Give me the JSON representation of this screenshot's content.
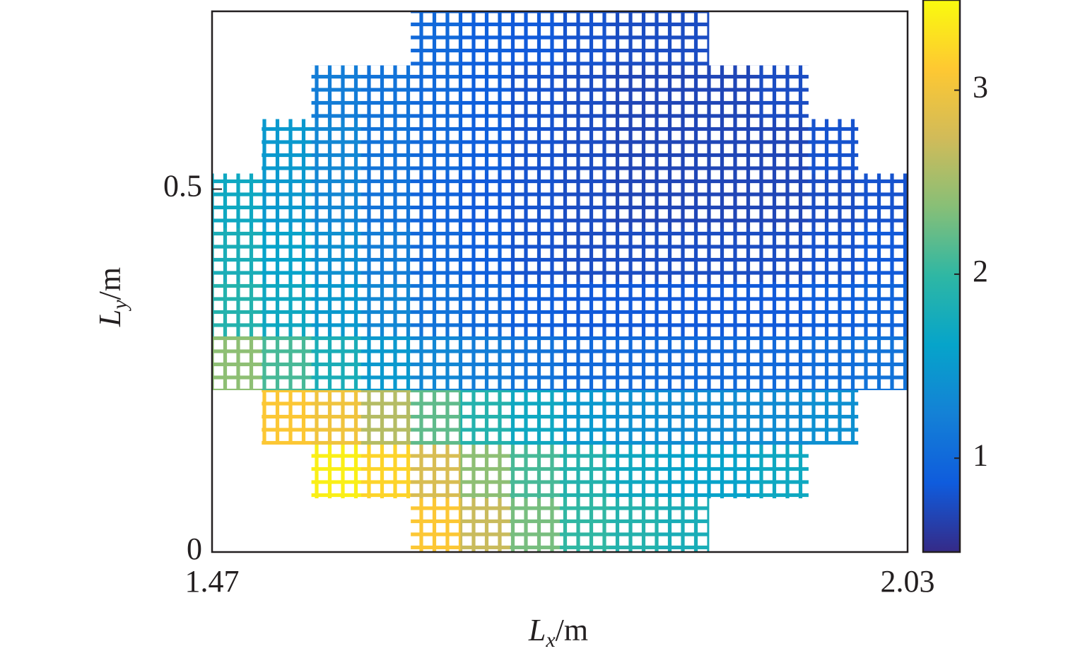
{
  "chart_data": {
    "type": "heatmap",
    "xlabel": {
      "symbol": "L",
      "subscript": "x",
      "unit": "/m"
    },
    "ylabel": {
      "symbol": "L",
      "subscript": "y",
      "unit": "/m"
    },
    "x": [
      1.49,
      1.53,
      1.57,
      1.61,
      1.65,
      1.69,
      1.73,
      1.77,
      1.81,
      1.85,
      1.89,
      1.93,
      1.97,
      2.01
    ],
    "y": [
      0.037,
      0.112,
      0.186,
      0.261,
      0.335,
      0.41,
      0.484,
      0.559,
      0.633,
      0.708
    ],
    "values": [
      [
        null,
        null,
        null,
        null,
        3.1,
        2.7,
        2.3,
        2.0,
        1.9,
        1.8,
        null,
        null,
        null,
        null
      ],
      [
        null,
        null,
        3.4,
        3.2,
        2.8,
        2.4,
        2.1,
        1.9,
        1.7,
        1.6,
        1.6,
        1.7,
        null,
        null
      ],
      [
        null,
        3.1,
        3.0,
        2.6,
        2.2,
        1.9,
        1.7,
        1.5,
        1.4,
        1.35,
        1.35,
        1.35,
        1.4,
        null
      ],
      [
        2.4,
        2.1,
        1.8,
        1.5,
        1.3,
        1.2,
        1.1,
        1.0,
        1.0,
        1.0,
        1.0,
        1.0,
        1.05,
        1.1
      ],
      [
        1.9,
        1.7,
        1.5,
        1.3,
        1.1,
        1.0,
        0.9,
        0.85,
        0.85,
        0.85,
        0.85,
        0.85,
        0.9,
        0.95
      ],
      [
        1.8,
        1.6,
        1.4,
        1.2,
        1.0,
        0.9,
        0.8,
        0.75,
        0.75,
        0.75,
        0.75,
        0.75,
        0.8,
        0.85
      ],
      [
        1.7,
        1.5,
        1.3,
        1.1,
        0.95,
        0.85,
        0.8,
        0.75,
        0.7,
        0.7,
        0.7,
        0.7,
        0.75,
        0.8
      ],
      [
        null,
        1.5,
        1.3,
        1.1,
        1.0,
        0.9,
        0.8,
        0.75,
        0.7,
        0.7,
        0.7,
        0.7,
        0.8,
        null
      ],
      [
        null,
        null,
        1.2,
        1.1,
        1.0,
        0.9,
        0.8,
        0.75,
        0.7,
        0.7,
        0.7,
        0.75,
        null,
        null
      ],
      [
        null,
        null,
        null,
        null,
        1.0,
        0.9,
        0.85,
        0.8,
        0.75,
        0.75,
        null,
        null,
        null,
        null
      ]
    ],
    "xlim": [
      1.47,
      2.03
    ],
    "xticks": [
      1.47,
      2.03
    ],
    "ylim": [
      0,
      0.745
    ],
    "yticks": [
      0,
      0.5
    ],
    "colorbar": {
      "clim": [
        0.49,
        3.49
      ],
      "ticks": [
        1,
        2,
        3
      ],
      "colors": [
        "#352a87",
        "#0f5cdd",
        "#1481d6",
        "#06a4ca",
        "#2eb7a4",
        "#87bf77",
        "#d1bb59",
        "#fec832",
        "#f9fb0e"
      ]
    }
  }
}
